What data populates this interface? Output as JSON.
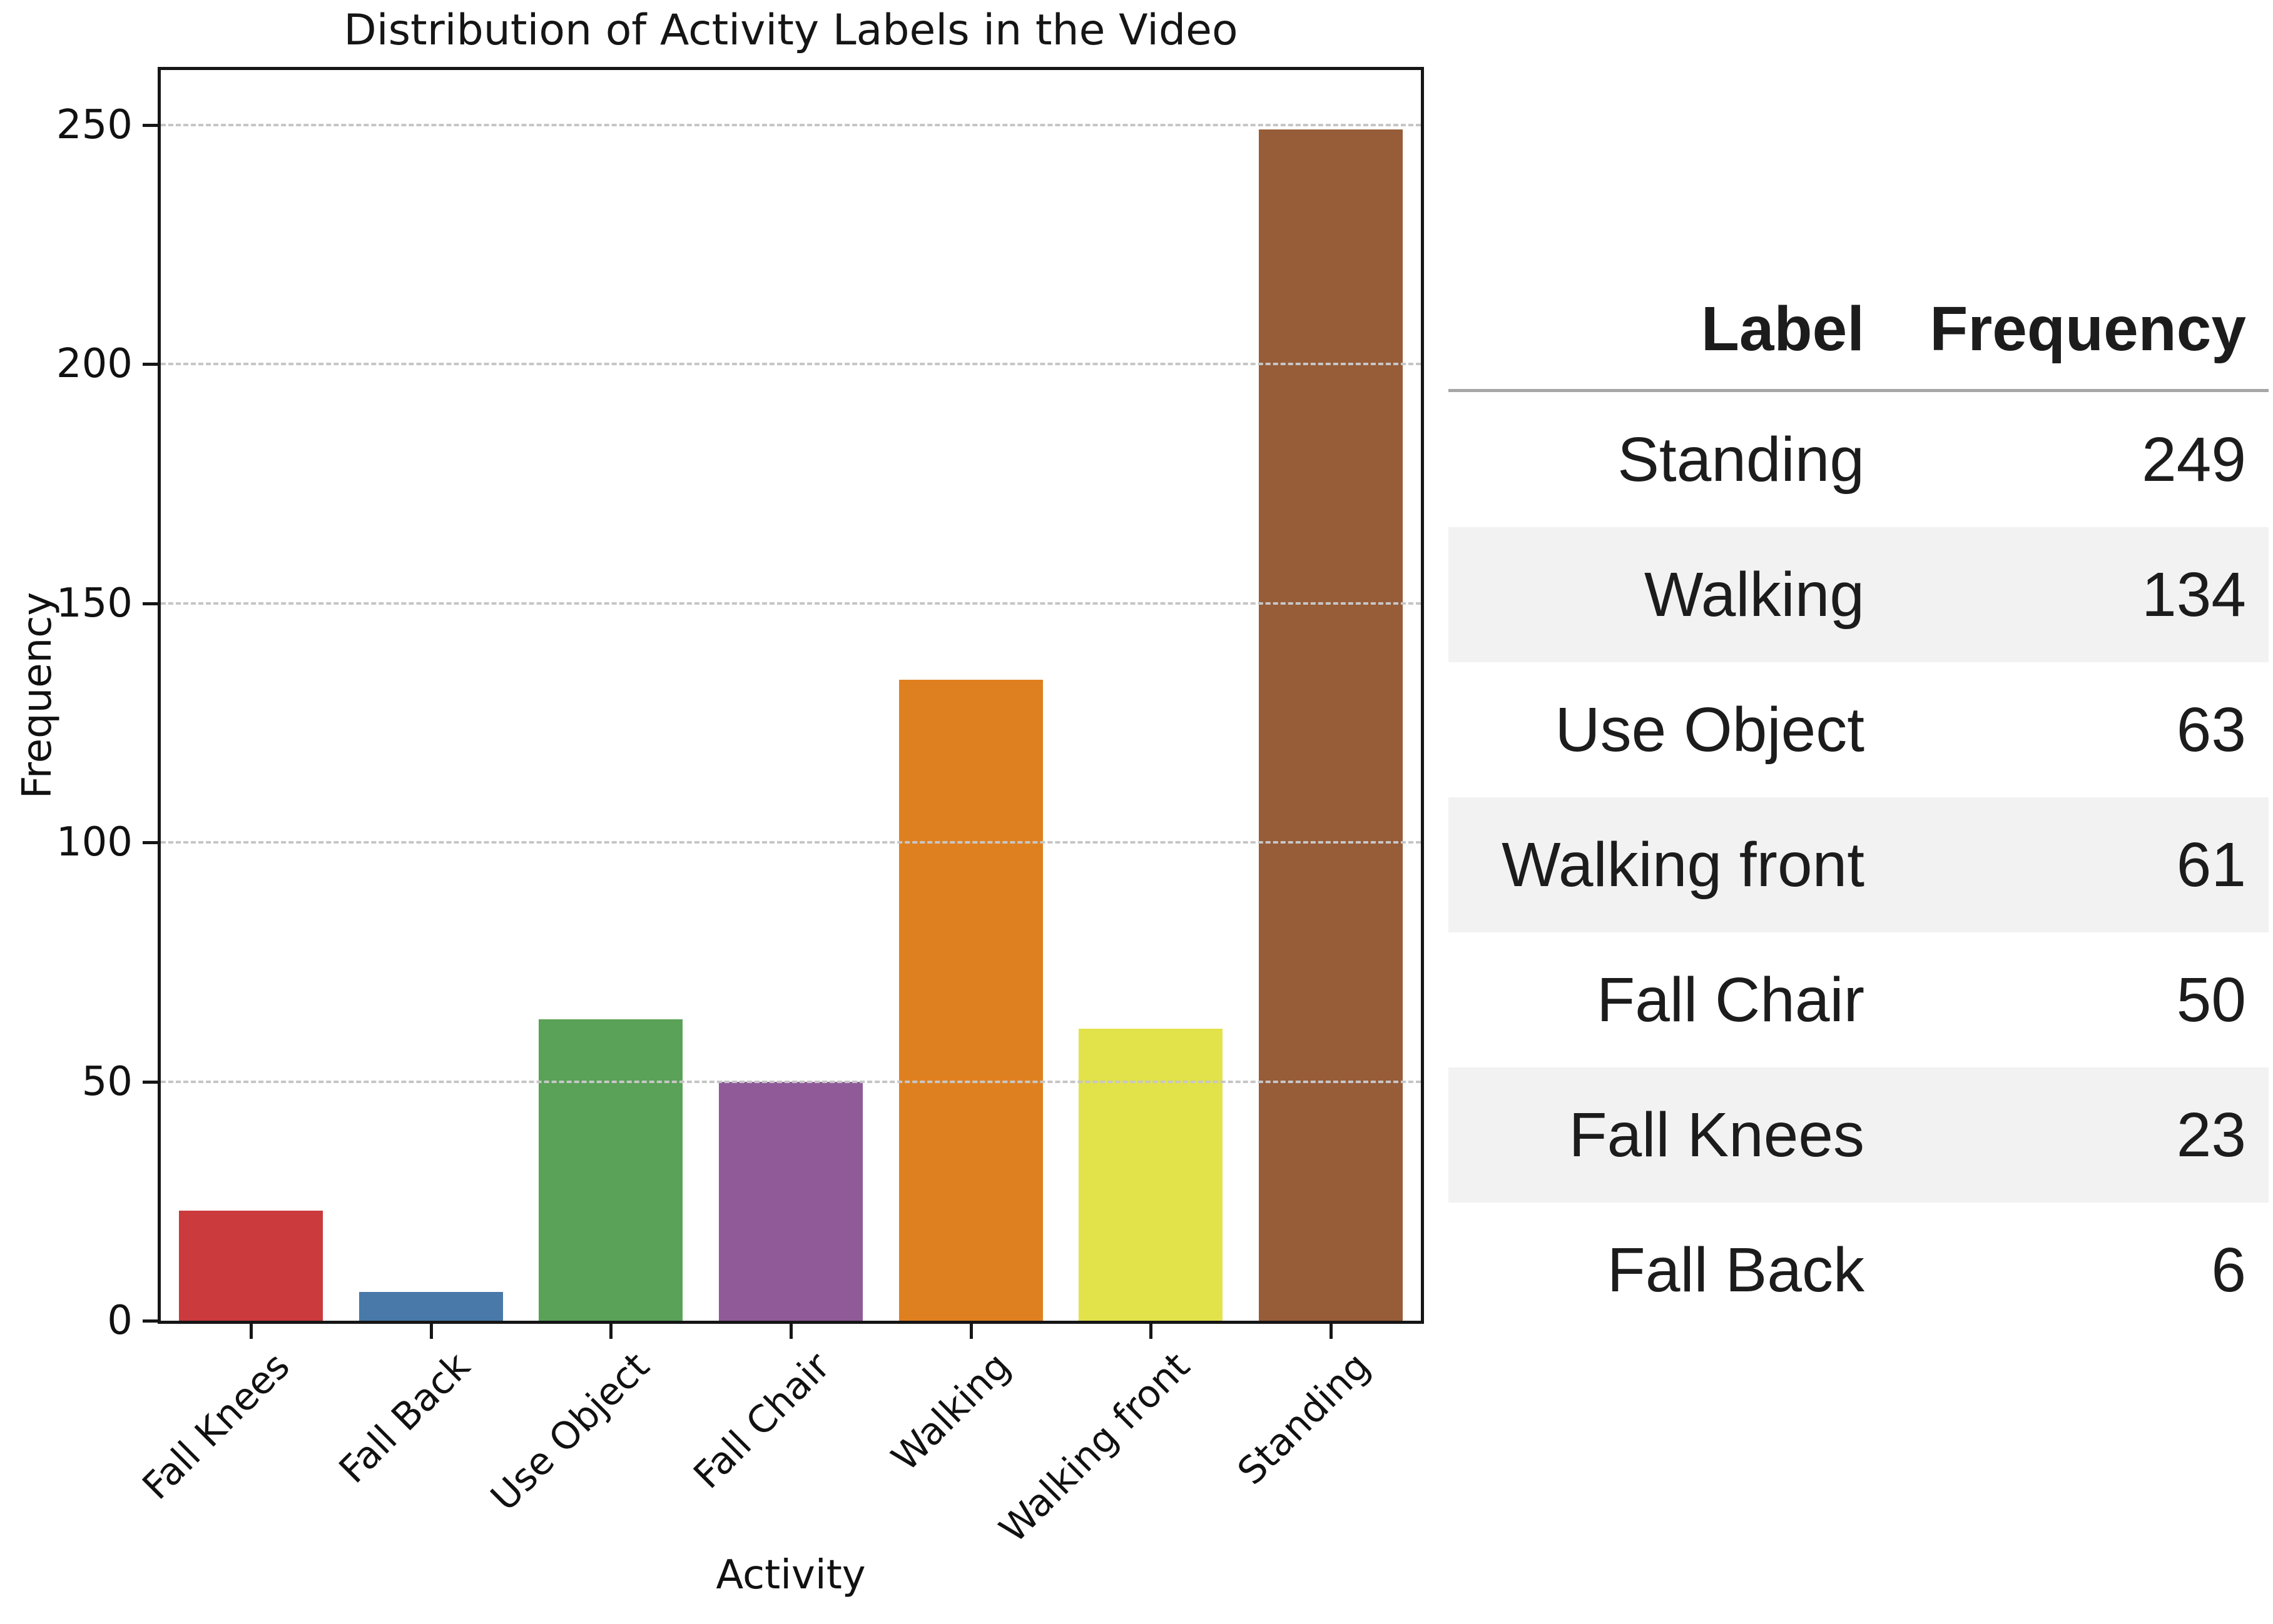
{
  "chart_data": {
    "type": "bar",
    "title": "Distribution of Activity Labels in the Video",
    "xlabel": "Activity",
    "ylabel": "Frequency",
    "categories": [
      "Fall Knees",
      "Fall Back",
      "Use Object",
      "Fall Chair",
      "Walking",
      "Walking front",
      "Standing"
    ],
    "values": [
      23,
      6,
      63,
      50,
      134,
      61,
      249
    ],
    "bar_colors": [
      "#cb3a3c",
      "#4879a9",
      "#59a257",
      "#905a99",
      "#df8020",
      "#e2e24a",
      "#975c38"
    ],
    "yticks": [
      0,
      50,
      100,
      150,
      200,
      250
    ],
    "ylim": [
      0,
      261.45
    ],
    "grid": "horizontal-dashed",
    "grid_color": "#c6c6c6",
    "legend": "none"
  },
  "table": {
    "headers": [
      "Label",
      "Frequency"
    ],
    "rows": [
      {
        "label": "Standing",
        "value": "249"
      },
      {
        "label": "Walking",
        "value": "134"
      },
      {
        "label": "Use Object",
        "value": "63"
      },
      {
        "label": "Walking front",
        "value": "61"
      },
      {
        "label": "Fall Chair",
        "value": "50"
      },
      {
        "label": "Fall Knees",
        "value": "23"
      },
      {
        "label": "Fall Back",
        "value": "6"
      }
    ],
    "stripe_color": "#f2f2f2"
  }
}
